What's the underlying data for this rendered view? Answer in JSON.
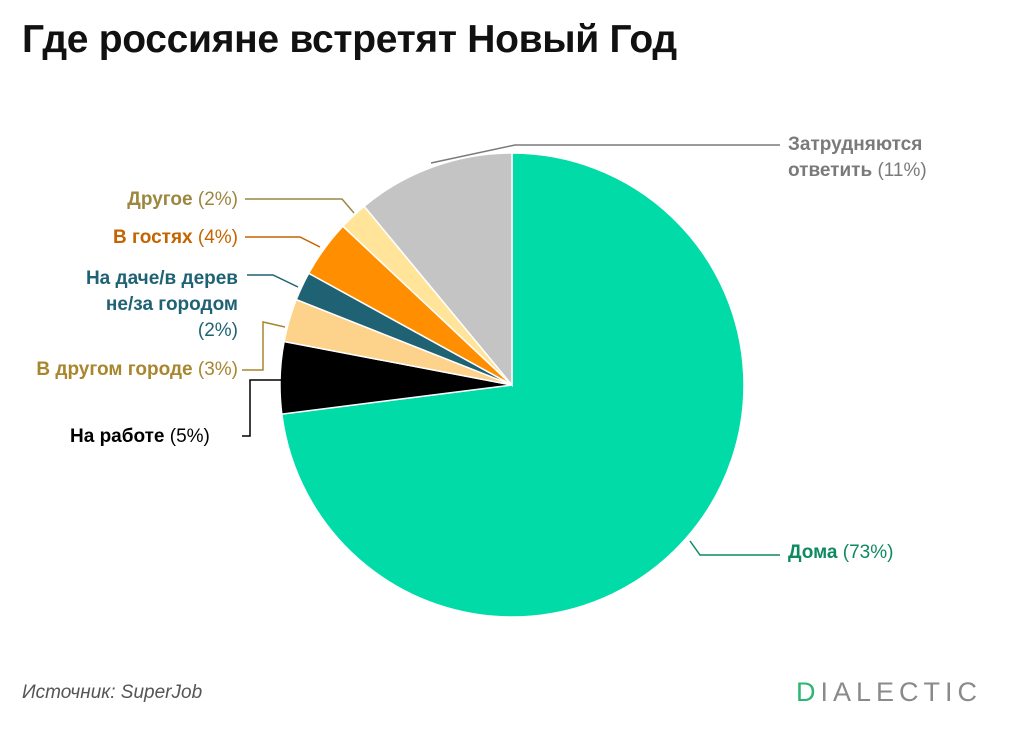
{
  "title": "Где россияне встретят Новый Год",
  "source": "Источник: SuperJob",
  "brand": {
    "first": "D",
    "rest": "IALECTIC",
    "accent": "#2bb673"
  },
  "chart_data": {
    "type": "pie",
    "title": "Где россияне встретят Новый Год",
    "slices": [
      {
        "label": "Дома",
        "value": 73,
        "pct_text": "(73%)",
        "color": "#00dba8",
        "text_color": "#0e8a5f"
      },
      {
        "label": "На работе",
        "value": 5,
        "pct_text": "(5%)",
        "color": "#000000",
        "text_color": "#000000"
      },
      {
        "label": "В другом городе",
        "value": 3,
        "pct_text": "(3%)",
        "color": "#fdd28a",
        "text_color": "#a8862e"
      },
      {
        "label": "На даче/в деревне/за городом",
        "value": 2,
        "pct_text": "(2%)",
        "color": "#1f6274",
        "text_color": "#1f6274"
      },
      {
        "label": "В гостях",
        "value": 4,
        "pct_text": "(4%)",
        "color": "#ff8f00",
        "text_color": "#c46400"
      },
      {
        "label": "Другое",
        "value": 2,
        "pct_text": "(2%)",
        "color": "#ffe49a",
        "text_color": "#9c8640"
      },
      {
        "label": "Затрудняются ответить",
        "value": 11,
        "pct_text": "(11%)",
        "color": "#c4c4c4",
        "text_color": "#7a7a7a"
      }
    ]
  }
}
